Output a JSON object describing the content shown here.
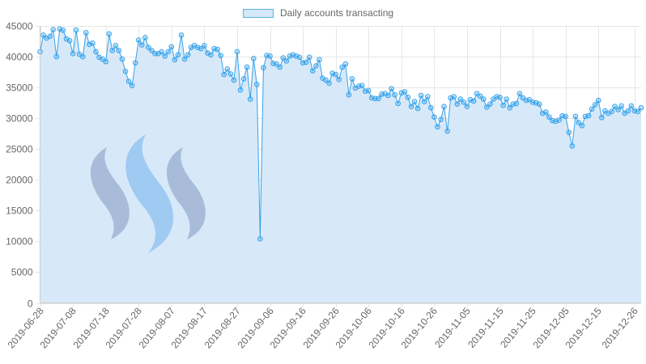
{
  "legend": {
    "label": "Daily accounts transacting"
  },
  "colors": {
    "line": "#36a2eb",
    "fill": "#d7e9f8",
    "grid": "#e6e6e6",
    "axis": "#666666",
    "logo": "#6f86b5",
    "logo_accent": "#4a9be8"
  },
  "chart_data": {
    "type": "area",
    "title": "",
    "xlabel": "",
    "ylabel": "",
    "ylim": [
      0,
      45000
    ],
    "yticks": [
      0,
      5000,
      10000,
      15000,
      20000,
      25000,
      30000,
      35000,
      40000,
      45000
    ],
    "x_start": "2019-06-28",
    "x_end": "2019-12-26",
    "x_tick_labels": [
      "2019-06-28",
      "2019-07-08",
      "2019-07-18",
      "2019-07-28",
      "2019-08-07",
      "2019-08-17",
      "2019-08-27",
      "2019-09-06",
      "2019-09-16",
      "2019-09-26",
      "2019-10-06",
      "2019-10-16",
      "2019-10-26",
      "2019-11-05",
      "2019-11-15",
      "2019-11-25",
      "2019-12-05",
      "2019-12-15",
      "2019-12-26"
    ],
    "grid": true,
    "legend_position": "top",
    "series": [
      {
        "name": "Daily accounts transacting",
        "values": [
          40800,
          43500,
          43000,
          43300,
          44400,
          40000,
          44500,
          44300,
          42900,
          42600,
          40500,
          44300,
          40400,
          40000,
          43900,
          42000,
          42200,
          40800,
          39900,
          39600,
          39200,
          43700,
          41000,
          41800,
          41000,
          39600,
          37600,
          36000,
          35300,
          39000,
          42700,
          41900,
          43100,
          41500,
          41000,
          40500,
          40500,
          40800,
          40100,
          40800,
          41600,
          39500,
          40300,
          43500,
          39600,
          40300,
          41500,
          41800,
          41500,
          41300,
          41800,
          40600,
          40300,
          41300,
          41200,
          40200,
          37100,
          38000,
          37200,
          36200,
          40800,
          34600,
          36400,
          38300,
          33100,
          39700,
          35500,
          10400,
          38200,
          40200,
          40100,
          38900,
          38800,
          38300,
          39800,
          39300,
          40100,
          40300,
          40100,
          39900,
          39000,
          39100,
          39900,
          37700,
          38500,
          39500,
          36500,
          36200,
          35700,
          37300,
          37100,
          36300,
          38300,
          38800,
          33800,
          36400,
          34900,
          35200,
          35300,
          34400,
          34500,
          33300,
          33200,
          33200,
          33900,
          34000,
          33700,
          34800,
          33800,
          32400,
          34100,
          34300,
          33400,
          31900,
          32700,
          31600,
          33700,
          32700,
          33500,
          31700,
          30200,
          28600,
          29800,
          31900,
          27900,
          33300,
          33500,
          32300,
          33100,
          32600,
          31900,
          33000,
          32800,
          34000,
          33600,
          33100,
          31800,
          32300,
          33100,
          33500,
          33400,
          32100,
          33100,
          31700,
          32300,
          32400,
          34000,
          33300,
          32900,
          33000,
          32600,
          32500,
          32300,
          30800,
          31000,
          30200,
          29600,
          29500,
          29700,
          30400,
          30300,
          27700,
          25500,
          30300,
          29300,
          28800,
          30300,
          30400,
          31500,
          32200,
          32900,
          30100,
          31200,
          30800,
          31100,
          31900,
          31400,
          32000,
          30800,
          31200,
          32000,
          31200,
          31100,
          31700
        ]
      }
    ]
  }
}
